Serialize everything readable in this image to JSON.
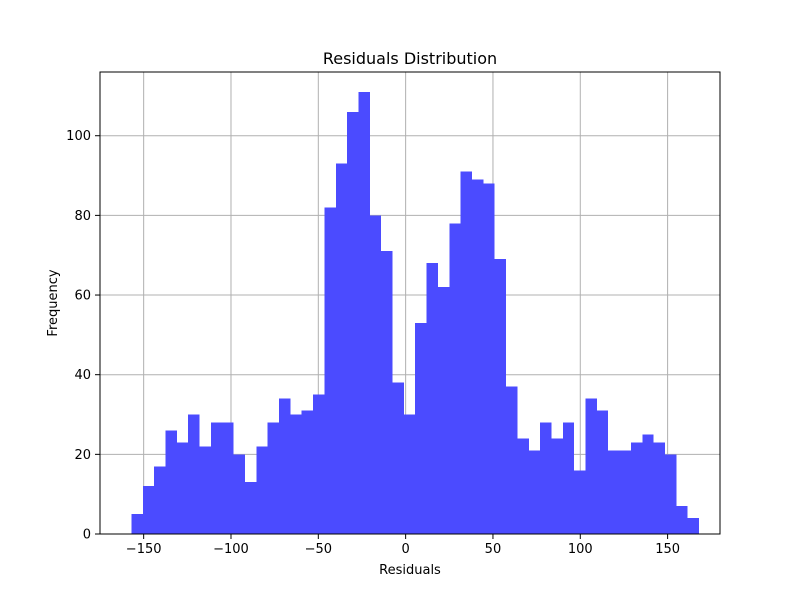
{
  "chart_data": {
    "type": "bar",
    "title": "Residuals Distribution",
    "xlabel": "Residuals",
    "ylabel": "Frequency",
    "xlim": [
      -175,
      180
    ],
    "ylim": [
      0,
      116
    ],
    "bin_start": -157,
    "bin_width": 6.5,
    "values": [
      5,
      12,
      17,
      26,
      23,
      30,
      22,
      28,
      28,
      20,
      13,
      22,
      28,
      34,
      30,
      31,
      35,
      82,
      93,
      106,
      111,
      80,
      71,
      38,
      30,
      53,
      68,
      62,
      78,
      91,
      89,
      88,
      69,
      37,
      24,
      21,
      28,
      24,
      28,
      16,
      34,
      31,
      21,
      21,
      23,
      25,
      23,
      20,
      7,
      4
    ],
    "x_ticks": [
      -150,
      -100,
      -50,
      0,
      50,
      100,
      150
    ],
    "x_tick_labels": [
      "−150",
      "−100",
      "−50",
      "0",
      "50",
      "100",
      "150"
    ],
    "y_ticks": [
      0,
      20,
      40,
      60,
      80,
      100
    ],
    "y_tick_labels": [
      "0",
      "20",
      "40",
      "60",
      "80",
      "100"
    ],
    "grid": true,
    "bar_color": "#4b4bff",
    "grid_color": "#b0b0b0"
  }
}
